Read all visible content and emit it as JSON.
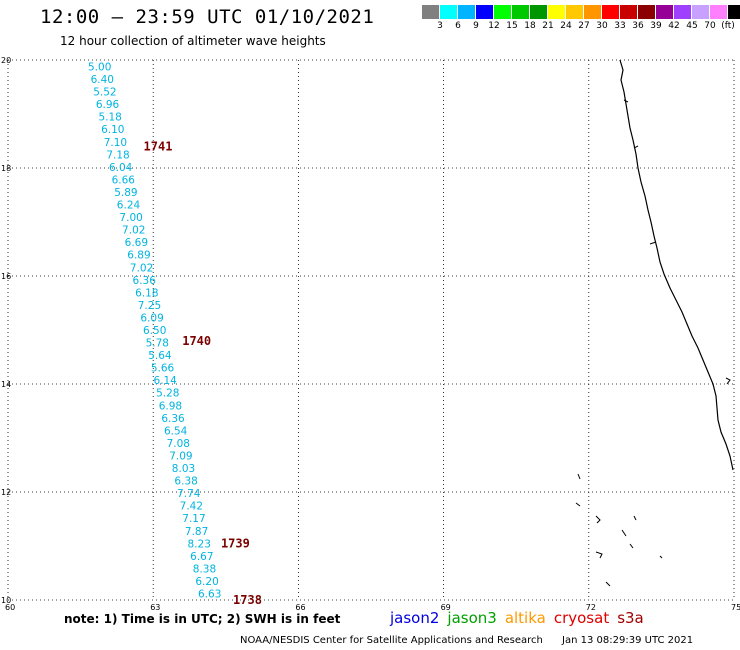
{
  "header": {
    "title": "12:00 – 23:59 UTC 01/10/2021",
    "subtitle": "12 hour collection of altimeter wave heights"
  },
  "legend": {
    "colors": [
      "#808080",
      "#00ffff",
      "#00b4ff",
      "#0000ff",
      "#00ff00",
      "#00c800",
      "#009600",
      "#ffff00",
      "#ffc800",
      "#ff9600",
      "#ff0000",
      "#c80000",
      "#8b0000",
      "#960096",
      "#a040ff",
      "#c8a0ff",
      "#ff80ff",
      "#000000"
    ],
    "labels": [
      "3",
      "6",
      "9",
      "12",
      "15",
      "18",
      "21",
      "24",
      "27",
      "30",
      "33",
      "36",
      "39",
      "42",
      "45",
      "70",
      "(ft)"
    ]
  },
  "map": {
    "lon_range": [
      60,
      75
    ],
    "lat_range": [
      10,
      20
    ],
    "x_ticks": [
      "60",
      "63",
      "66",
      "69",
      "72",
      "75"
    ],
    "y_ticks": [
      "10",
      "12",
      "14",
      "16",
      "18",
      "20"
    ],
    "swh_color": "#00b4e0",
    "pass_color": "#7b0000",
    "swh_labels": [
      "5.00",
      "6.40",
      "5.52",
      "6.96",
      "5.18",
      "6.10",
      "7.10",
      "7.18",
      "6.04",
      "6.66",
      "5.89",
      "6.24",
      "7.00",
      "7.02",
      "6.69",
      "6.89",
      "7.02",
      "6.36",
      "6.18",
      "7.25",
      "6.09",
      "6.50",
      "5.78",
      "5.64",
      "5.66",
      "6.14",
      "5.28",
      "6.98",
      "6.36",
      "6.54",
      "7.08",
      "7.09",
      "8.03",
      "6.38",
      "7.74",
      "7.42",
      "7.17",
      "7.87",
      "8.23",
      "6.67",
      "8.38",
      "6.20",
      "6.63"
    ],
    "pass_labels": [
      {
        "text": "1741",
        "lon": 62.8,
        "lat": 18.4
      },
      {
        "text": "1740",
        "lon": 63.6,
        "lat": 14.8
      },
      {
        "text": "1739",
        "lon": 64.4,
        "lat": 11.05
      },
      {
        "text": "1738",
        "lon": 64.65,
        "lat": 10.0
      }
    ]
  },
  "footer": {
    "note": "note: 1) Time is in UTC; 2) SWH is in feet",
    "satellites": [
      {
        "name": "jason2",
        "color": "#0000e0"
      },
      {
        "name": "jason3",
        "color": "#00a000"
      },
      {
        "name": "altika",
        "color": "#ff9900"
      },
      {
        "name": "cryosat",
        "color": "#e00000"
      },
      {
        "name": "s3a",
        "color": "#a00000"
      }
    ],
    "credit": "NOAA/NESDIS Center for Satellite Applications and Research",
    "timestamp": "Jan 13 08:29:39 UTC 2021"
  }
}
